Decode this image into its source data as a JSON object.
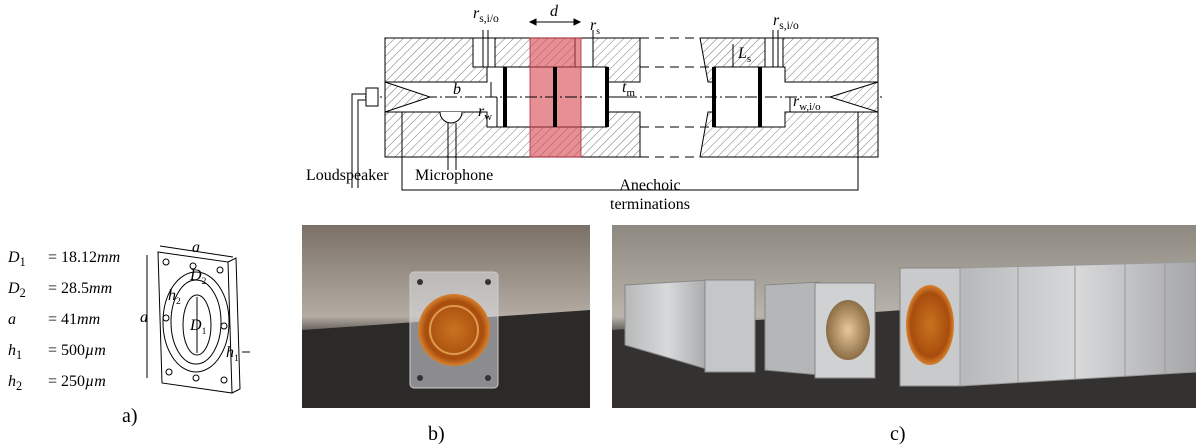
{
  "panel_a": {
    "caption": "a)",
    "equals": "=",
    "params": [
      {
        "symbol": "D",
        "sub": "1",
        "value": "18.12",
        "unit": "mm"
      },
      {
        "symbol": "D",
        "sub": "2",
        "value": "28.5",
        "unit": "mm"
      },
      {
        "symbol": "a",
        "value": "41",
        "unit": "mm"
      },
      {
        "symbol": "h",
        "sub": "1",
        "value": "500",
        "unit": "µm"
      },
      {
        "symbol": "h",
        "sub": "2",
        "value": "250",
        "unit": "µm"
      }
    ],
    "plate_labels": {
      "width": {
        "symbol": "a"
      },
      "height": {
        "symbol": "a"
      },
      "outer_diameter": {
        "symbol": "D",
        "sub": "2"
      },
      "ring": {
        "symbol": "h",
        "sub": "2"
      },
      "inner_diameter": {
        "symbol": "D",
        "sub": "1"
      },
      "thickness": {
        "symbol": "h",
        "sub": "1"
      }
    }
  },
  "schematic": {
    "labels": {
      "port_radius_left": {
        "symbol": "r",
        "sub": "s,i/o"
      },
      "spacing": {
        "symbol": "d"
      },
      "slot_radius": {
        "symbol": "r",
        "sub": "s"
      },
      "port_radius_right": {
        "symbol": "r",
        "sub": "s,i/o"
      },
      "slot_length": {
        "symbol": "L",
        "sub": "s"
      },
      "offset": {
        "symbol": "b"
      },
      "waveguide_radius": {
        "symbol": "r",
        "sub": "w"
      },
      "membrane_thickness": {
        "symbol": "t",
        "sub": "m"
      },
      "waveguide_radius_io": {
        "symbol": "r",
        "sub": "w,i/o"
      }
    },
    "loudspeaker": "Loudspeaker",
    "microphone": "Microphone",
    "anechoic": [
      "Anechoic",
      "terminations"
    ]
  },
  "panel_b": {
    "caption": "b)"
  },
  "panel_c": {
    "caption": "c)"
  }
}
